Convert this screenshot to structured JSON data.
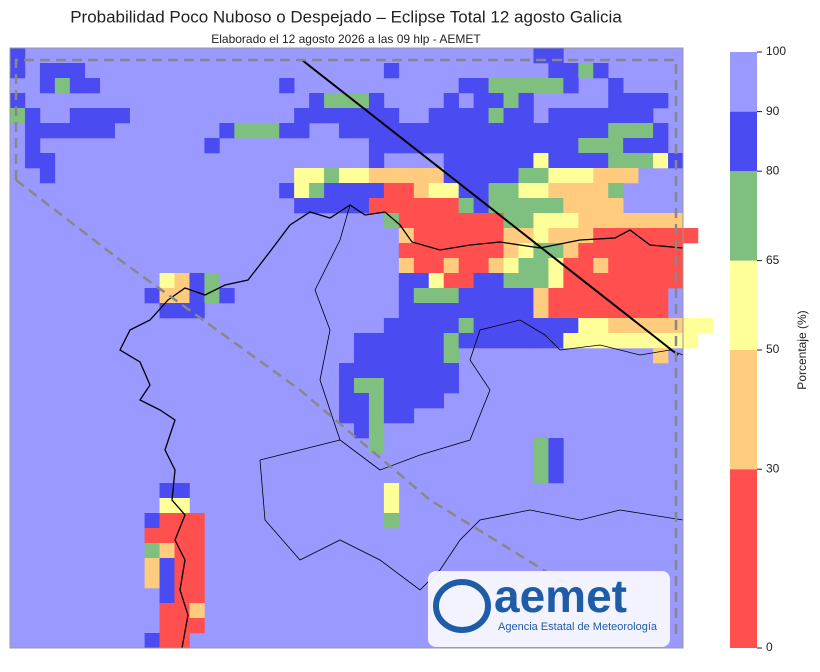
{
  "title": "Probabilidad Poco Nuboso o Despejado – Eclipse Total 12 agosto Galicia",
  "subtitle": "Elaborado el 12 agosto 2026 a las 09 hlp - AEMET",
  "colorbar": {
    "label": "Porcentaje (%)",
    "ylim": [
      0,
      100
    ],
    "yticks": [
      0,
      30,
      50,
      65,
      80,
      90,
      100
    ],
    "colors": [
      "#ff4f4f",
      "#ffcc7f",
      "#ffff99",
      "#7fbf7f",
      "#4b4bf2",
      "#9999ff"
    ]
  },
  "logo": {
    "name": "aemet",
    "subtitle": "Agencia Estatal de Meteorología"
  },
  "map_data": {
    "background_value": 95,
    "runs": [
      {
        "row": 0,
        "col": 0,
        "values": [
          85
        ]
      },
      {
        "row": 0,
        "col": 35,
        "values": [
          85,
          85
        ]
      },
      {
        "row": 1,
        "col": 0,
        "values": [
          85
        ]
      },
      {
        "row": 1,
        "col": 2,
        "values": [
          85,
          85,
          85
        ]
      },
      {
        "row": 1,
        "col": 25,
        "values": [
          85
        ]
      },
      {
        "row": 1,
        "col": 36,
        "values": [
          85,
          85,
          72,
          85
        ]
      },
      {
        "row": 2,
        "col": 2,
        "values": [
          85,
          72,
          85,
          85
        ]
      },
      {
        "row": 2,
        "col": 18,
        "values": [
          85
        ]
      },
      {
        "row": 2,
        "col": 30,
        "values": [
          85,
          85,
          72,
          72,
          72,
          72,
          72,
          85
        ]
      },
      {
        "row": 2,
        "col": 40,
        "values": [
          85
        ]
      },
      {
        "row": 3,
        "col": 0,
        "values": [
          85
        ]
      },
      {
        "row": 3,
        "col": 20,
        "values": [
          85,
          72,
          72,
          72,
          85
        ]
      },
      {
        "row": 3,
        "col": 29,
        "values": [
          85
        ]
      },
      {
        "row": 3,
        "col": 31,
        "values": [
          85,
          85,
          72,
          85
        ]
      },
      {
        "row": 3,
        "col": 40,
        "values": [
          85,
          85,
          85,
          85
        ]
      },
      {
        "row": 4,
        "col": 0,
        "values": [
          72,
          85
        ]
      },
      {
        "row": 4,
        "col": 4,
        "values": [
          85,
          85,
          85
        ]
      },
      {
        "row": 4,
        "col": 7,
        "values": [
          85
        ]
      },
      {
        "row": 4,
        "col": 19,
        "values": [
          85,
          85,
          85,
          85,
          85,
          85,
          85
        ]
      },
      {
        "row": 4,
        "col": 28,
        "values": [
          85,
          85,
          85,
          85,
          72,
          85,
          85
        ]
      },
      {
        "row": 4,
        "col": 36,
        "values": [
          85,
          85,
          85,
          85,
          85,
          85,
          85
        ]
      },
      {
        "row": 5,
        "col": 1,
        "values": [
          85,
          85,
          85,
          85,
          85,
          85
        ]
      },
      {
        "row": 5,
        "col": 14,
        "values": [
          85,
          72,
          72,
          72,
          85,
          85
        ]
      },
      {
        "row": 5,
        "col": 22,
        "values": [
          85,
          85,
          85,
          85,
          85,
          85,
          85,
          85,
          85,
          85,
          85,
          85,
          85,
          85,
          85,
          85,
          85,
          85,
          72,
          72,
          72,
          85
        ]
      },
      {
        "row": 6,
        "col": 1,
        "values": [
          85
        ]
      },
      {
        "row": 6,
        "col": 13,
        "values": [
          85
        ]
      },
      {
        "row": 6,
        "col": 24,
        "values": [
          85,
          85,
          85,
          85,
          85,
          85,
          85,
          85,
          85,
          85,
          85,
          85,
          85,
          85,
          72,
          72,
          72,
          85,
          85,
          85
        ]
      },
      {
        "row": 7,
        "col": 1,
        "values": [
          85,
          85
        ]
      },
      {
        "row": 7,
        "col": 24,
        "values": [
          85
        ]
      },
      {
        "row": 7,
        "col": 29,
        "values": [
          85,
          85,
          85,
          85,
          85,
          85,
          57,
          85,
          85,
          85,
          85,
          72,
          72,
          72,
          57,
          85
        ]
      },
      {
        "row": 8,
        "col": 2,
        "values": [
          85
        ]
      },
      {
        "row": 8,
        "col": 19,
        "values": [
          57,
          57,
          72,
          57,
          57,
          40,
          40,
          40,
          40,
          40,
          85,
          85,
          85,
          85,
          85,
          72,
          72,
          57,
          57,
          57,
          40,
          40,
          40
        ]
      },
      {
        "row": 9,
        "col": 18,
        "values": [
          85,
          57,
          72,
          85,
          85,
          85,
          85,
          15,
          15,
          40,
          57,
          57,
          85,
          85,
          72,
          72,
          57,
          57,
          40,
          40,
          40,
          40,
          72
        ]
      },
      {
        "row": 10,
        "col": 19,
        "values": [
          85,
          85,
          85,
          85,
          85,
          15,
          15,
          15,
          15,
          15,
          15,
          72,
          85,
          72,
          72,
          72,
          72,
          72,
          40,
          40,
          40,
          40
        ]
      },
      {
        "row": 11,
        "col": 25,
        "values": [
          72,
          15,
          15,
          15,
          15,
          15,
          15,
          15,
          72,
          72,
          57,
          57,
          57,
          40,
          40,
          40,
          40,
          40,
          40,
          40
        ]
      },
      {
        "row": 12,
        "col": 26,
        "values": [
          40,
          15,
          15,
          15,
          15,
          15,
          15,
          40,
          40,
          57,
          40,
          40,
          40,
          15,
          15,
          15,
          15,
          15,
          15,
          15
        ]
      },
      {
        "row": 13,
        "col": 26,
        "values": [
          15,
          15,
          15,
          15,
          15,
          15,
          15,
          40,
          57,
          72,
          72,
          40,
          15,
          15,
          15,
          15,
          15,
          15,
          15
        ]
      },
      {
        "row": 14,
        "col": 26,
        "values": [
          40,
          15,
          15,
          40,
          15,
          15,
          40,
          57,
          72,
          72,
          57,
          15,
          15,
          40,
          15,
          15,
          15,
          15,
          15
        ]
      },
      {
        "row": 15,
        "col": 10,
        "values": [
          57,
          40,
          85,
          72
        ]
      },
      {
        "row": 15,
        "col": 26,
        "values": [
          85,
          85,
          57,
          15,
          15,
          85,
          85,
          72,
          72,
          72,
          57,
          15,
          15,
          15,
          15,
          15,
          15,
          15,
          15
        ]
      },
      {
        "row": 16,
        "col": 9,
        "values": [
          85,
          40,
          40,
          85,
          72,
          85
        ]
      },
      {
        "row": 16,
        "col": 26,
        "values": [
          85,
          72,
          72,
          72,
          85,
          85,
          85,
          85,
          85,
          40,
          15,
          15,
          15,
          15,
          15,
          15,
          15,
          15
        ]
      },
      {
        "row": 17,
        "col": 10,
        "values": [
          85,
          85,
          85
        ]
      },
      {
        "row": 17,
        "col": 26,
        "values": [
          85,
          85,
          85,
          85,
          85,
          85,
          85,
          85,
          85,
          40,
          15,
          15,
          15,
          15,
          15,
          15,
          15,
          15
        ]
      },
      {
        "row": 18,
        "col": 25,
        "values": [
          85,
          85,
          85,
          85,
          85,
          72,
          85,
          85,
          85,
          85,
          85,
          85,
          85,
          57,
          57,
          40,
          40,
          40,
          40,
          40,
          57,
          57
        ]
      },
      {
        "row": 19,
        "col": 23,
        "values": [
          85,
          85,
          85,
          85,
          85,
          85,
          72,
          85,
          85,
          85,
          85,
          85,
          85,
          85,
          57,
          57,
          57,
          57,
          57,
          57,
          57,
          57,
          57
        ]
      },
      {
        "row": 20,
        "col": 23,
        "values": [
          85,
          85,
          85,
          85,
          85,
          85,
          72
        ]
      },
      {
        "row": 20,
        "col": 43,
        "values": [
          40
        ]
      },
      {
        "row": 21,
        "col": 22,
        "values": [
          85,
          85,
          85,
          85,
          85,
          85,
          85,
          85
        ]
      },
      {
        "row": 22,
        "col": 22,
        "values": [
          85,
          72,
          72,
          85,
          85,
          85,
          85,
          85
        ]
      },
      {
        "row": 23,
        "col": 22,
        "values": [
          85,
          85,
          72,
          85,
          85,
          85,
          85
        ]
      },
      {
        "row": 24,
        "col": 22,
        "values": [
          85,
          85,
          72,
          85,
          85
        ]
      },
      {
        "row": 25,
        "col": 23,
        "values": [
          85,
          72
        ]
      },
      {
        "row": 26,
        "col": 24,
        "values": [
          72
        ]
      },
      {
        "row": 26,
        "col": 35,
        "values": [
          72,
          85
        ]
      },
      {
        "row": 27,
        "col": 35,
        "values": [
          72,
          85
        ]
      },
      {
        "row": 28,
        "col": 35,
        "values": [
          72,
          85
        ]
      },
      {
        "row": 29,
        "col": 10,
        "values": [
          85,
          85
        ]
      },
      {
        "row": 29,
        "col": 25,
        "values": [
          57
        ]
      },
      {
        "row": 30,
        "col": 10,
        "values": [
          57,
          57
        ]
      },
      {
        "row": 30,
        "col": 25,
        "values": [
          57
        ]
      },
      {
        "row": 31,
        "col": 9,
        "values": [
          85,
          15,
          15,
          15
        ]
      },
      {
        "row": 31,
        "col": 25,
        "values": [
          72
        ]
      },
      {
        "row": 32,
        "col": 9,
        "values": [
          15,
          15,
          15,
          15
        ]
      },
      {
        "row": 33,
        "col": 9,
        "values": [
          72,
          40,
          15,
          15
        ]
      },
      {
        "row": 34,
        "col": 9,
        "values": [
          40,
          85,
          15,
          15
        ]
      },
      {
        "row": 35,
        "col": 9,
        "values": [
          40,
          85,
          15,
          15
        ]
      },
      {
        "row": 36,
        "col": 10,
        "values": [
          85,
          15,
          15
        ]
      },
      {
        "row": 37,
        "col": 10,
        "values": [
          15,
          15,
          40
        ]
      },
      {
        "row": 38,
        "col": 10,
        "values": [
          15,
          15,
          15
        ]
      },
      {
        "row": 39,
        "col": 9,
        "values": [
          85,
          15,
          15
        ]
      }
    ]
  }
}
